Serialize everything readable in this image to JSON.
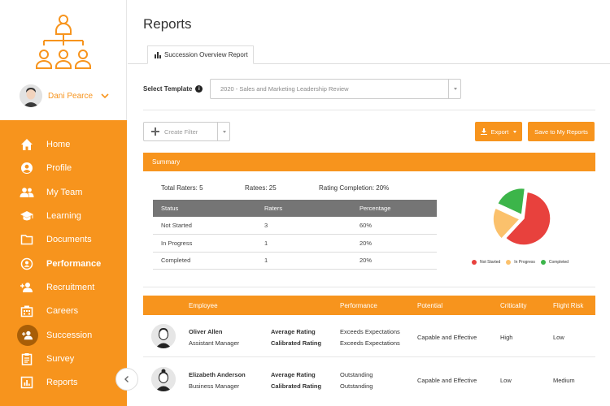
{
  "user": {
    "name": "Dani Pearce"
  },
  "nav": {
    "items": [
      {
        "label": "Home",
        "icon": "home-icon"
      },
      {
        "label": "Profile",
        "icon": "profile-icon"
      },
      {
        "label": "My Team",
        "icon": "team-icon"
      },
      {
        "label": "Learning",
        "icon": "graduation-cap-icon"
      },
      {
        "label": "Documents",
        "icon": "folder-icon"
      },
      {
        "label": "Performance",
        "icon": "performance-icon"
      },
      {
        "label": "Recruitment",
        "icon": "add-user-icon"
      },
      {
        "label": "Careers",
        "icon": "building-icon"
      },
      {
        "label": "Succession",
        "icon": "succession-icon"
      },
      {
        "label": "Survey",
        "icon": "clipboard-icon"
      },
      {
        "label": "Reports",
        "icon": "bar-chart-icon"
      }
    ],
    "active": "Performance",
    "selected": "Succession"
  },
  "page": {
    "title": "Reports",
    "tab_label": "Succession Overview Report"
  },
  "template": {
    "label": "Select Template",
    "value": "2020 - Sales and Marketing Leadership Review"
  },
  "filter": {
    "placeholder": "Create Filter"
  },
  "buttons": {
    "export": "Export",
    "save": "Save to My Reports"
  },
  "summary": {
    "title": "Summary",
    "total_raters": "Total Raters: 5",
    "ratees": "Ratees: 25",
    "completion": "Rating Completion: 20%",
    "columns": [
      "Status",
      "Raters",
      "Percentage"
    ],
    "rows": [
      [
        "Not Started",
        "3",
        "60%"
      ],
      [
        "In Progress",
        "1",
        "20%"
      ],
      [
        "Completed",
        "1",
        "20%"
      ]
    ]
  },
  "chart_data": {
    "type": "pie",
    "categories": [
      "Not Started",
      "In Progress",
      "Completed"
    ],
    "values": [
      60,
      20,
      20
    ],
    "colors": [
      "#e8413d",
      "#fbc16c",
      "#3cb54a"
    ],
    "legend": "bottom"
  },
  "employees": {
    "columns": [
      "Employee",
      "Performance",
      "Potential",
      "Criticality",
      "Flight Risk"
    ],
    "rating_labels": [
      "Average Rating",
      "Calibrated Rating"
    ],
    "rows": [
      {
        "name": "Oliver Allen",
        "title": "Assistant Manager",
        "average": "Exceeds Expectations",
        "calibrated": "Exceeds Expectations",
        "potential": "Capable and Effective",
        "criticality": "High",
        "flight_risk": "Low"
      },
      {
        "name": "Elizabeth Anderson",
        "title": "Business Manager",
        "average": "Outstanding",
        "calibrated": "Outstanding",
        "potential": "Capable and Effective",
        "criticality": "Low",
        "flight_risk": "Medium"
      }
    ]
  }
}
